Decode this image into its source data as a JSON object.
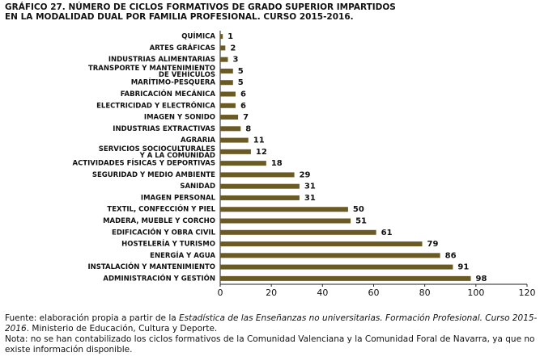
{
  "chart_data": {
    "type": "bar",
    "orientation": "horizontal",
    "title": [
      "GRÁFICO 27. NÚMERO DE CICLOS FORMATIVOS DE GRADO SUPERIOR IMPARTIDOS",
      "EN LA MODALIDAD DUAL POR FAMILIA PROFESIONAL. CURSO 2015-2016."
    ],
    "categories": [
      "QUÍMICA",
      "ARTES GRÁFICAS",
      "INDUSTRIAS ALIMENTARIAS",
      "TRANSPORTE Y MANTENIMIENTO\nDE VEHÍCULOS",
      "MARÍTIMO-PESQUERA",
      "FABRICACIÓN MECÁNICA",
      "ELECTRICIDAD Y ELECTRÓNICA",
      "IMAGEN Y SONIDO",
      "INDUSTRIAS EXTRACTIVAS",
      "AGRARIA",
      "SERVICIOS SOCIOCULTURALES\nY A LA COMUNIDAD",
      "ACTIVIDADES FÍSICAS Y DEPORTIVAS",
      "SEGURIDAD Y MEDIO AMBIENTE",
      "SANIDAD",
      "IMAGEN PERSONAL",
      "TEXTIL, CONFECCIÓN Y PIEL",
      "MADERA, MUEBLE Y CORCHO",
      "EDIFICACIÓN Y OBRA CIVIL",
      "HOSTELERÍA Y TURISMO",
      "ENERGÍA Y AGUA",
      "INSTALACIÓN Y MANTENIMIENTO",
      "ADMINISTRACIÓN Y GESTIÓN"
    ],
    "values": [
      1,
      2,
      3,
      5,
      5,
      6,
      6,
      7,
      8,
      11,
      12,
      18,
      29,
      31,
      31,
      50,
      51,
      61,
      79,
      86,
      91,
      98
    ],
    "color": "#6b5a24",
    "xlim": [
      0,
      120
    ],
    "xticks": [
      0,
      20,
      40,
      60,
      80,
      100,
      120
    ],
    "source": [
      "Fuente: elaboración propia a partir de la ",
      "Estadística de las Enseñanzas no universitarias. Formación Profesional. Curso 2015-2016",
      ". Ministerio de Educación, Cultura y Deporte."
    ],
    "note": "Nota: no se han contabilizado los ciclos formativos de la Comunidad Valenciana y la Comunidad Foral de Navarra, ya que no existe información disponible."
  }
}
